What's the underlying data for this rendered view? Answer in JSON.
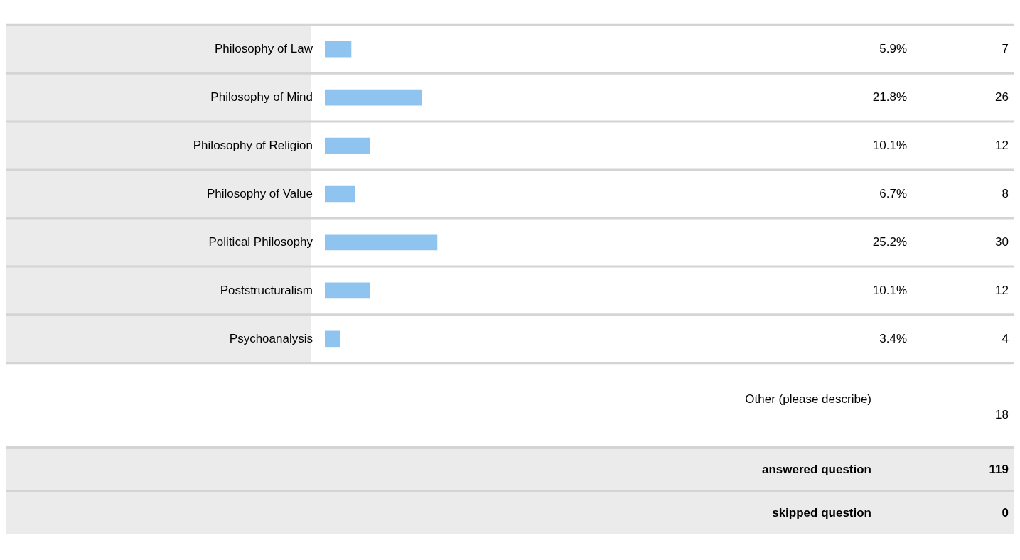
{
  "chart_data": {
    "type": "bar",
    "orientation": "horizontal",
    "categories": [
      "Philosophy of Law",
      "Philosophy of Mind",
      "Philosophy of Religion",
      "Philosophy of Value",
      "Political Philosophy",
      "Poststructuralism",
      "Psychoanalysis"
    ],
    "values": [
      5.9,
      21.8,
      10.1,
      6.7,
      25.2,
      10.1,
      3.4
    ],
    "value_labels": [
      "5.9%",
      "21.8%",
      "10.1%",
      "6.7%",
      "25.2%",
      "10.1%",
      "3.4%"
    ],
    "color": "#8fc3f0",
    "tick_labels": "y",
    "annotations": [
      "7",
      "26",
      "12",
      "8",
      "30",
      "12",
      "4",
      "Other (please describe)",
      "18",
      "answered question",
      "119",
      "skipped question",
      "0"
    ]
  }
}
